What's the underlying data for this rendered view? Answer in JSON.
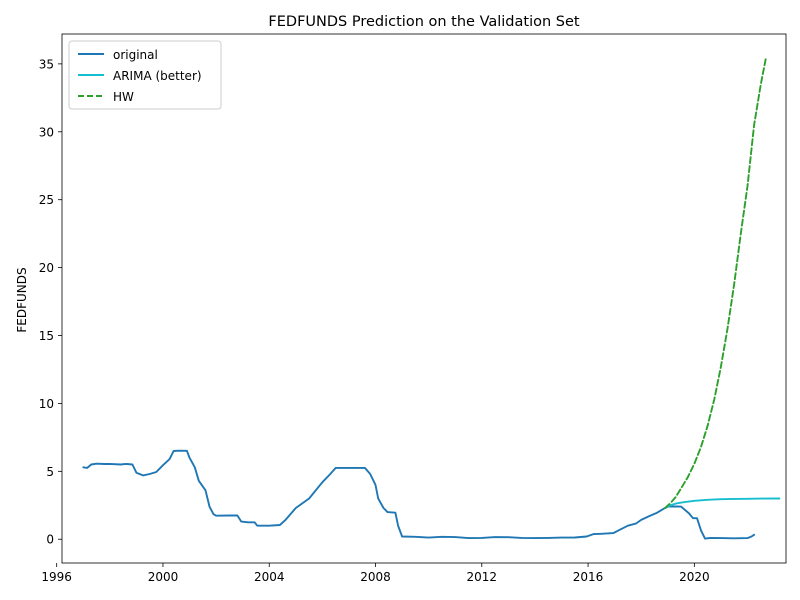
{
  "chart_data": {
    "type": "line",
    "title": "FEDFUNDS Prediction on the Validation Set",
    "xlabel": "",
    "ylabel": "FEDFUNDS",
    "xlim": [
      1996.2,
      2023.45
    ],
    "ylim": [
      -1.75,
      37.2
    ],
    "x_ticks": [
      1996,
      2000,
      2004,
      2008,
      2012,
      2016,
      2020
    ],
    "y_ticks": [
      0,
      5,
      10,
      15,
      20,
      25,
      30,
      35
    ],
    "grid": false,
    "legend_position": "upper-left",
    "series": [
      {
        "name": "original",
        "color": "#1f77b4",
        "style": "solid",
        "points": [
          [
            1997.0,
            5.3
          ],
          [
            1997.15,
            5.25
          ],
          [
            1997.3,
            5.5
          ],
          [
            1997.5,
            5.56
          ],
          [
            1997.8,
            5.54
          ],
          [
            1998.0,
            5.55
          ],
          [
            1998.4,
            5.5
          ],
          [
            1998.6,
            5.55
          ],
          [
            1998.85,
            5.5
          ],
          [
            1999.0,
            4.9
          ],
          [
            1999.25,
            4.7
          ],
          [
            1999.5,
            4.8
          ],
          [
            1999.75,
            4.95
          ],
          [
            2000.0,
            5.45
          ],
          [
            2000.25,
            5.9
          ],
          [
            2000.4,
            6.5
          ],
          [
            2000.6,
            6.52
          ],
          [
            2000.9,
            6.51
          ],
          [
            2001.0,
            6.0
          ],
          [
            2001.2,
            5.3
          ],
          [
            2001.35,
            4.3
          ],
          [
            2001.6,
            3.6
          ],
          [
            2001.75,
            2.4
          ],
          [
            2001.9,
            1.85
          ],
          [
            2002.0,
            1.73
          ],
          [
            2002.5,
            1.75
          ],
          [
            2002.8,
            1.75
          ],
          [
            2002.95,
            1.3
          ],
          [
            2003.2,
            1.25
          ],
          [
            2003.45,
            1.25
          ],
          [
            2003.55,
            1.0
          ],
          [
            2004.0,
            1.0
          ],
          [
            2004.4,
            1.05
          ],
          [
            2004.6,
            1.4
          ],
          [
            2005.0,
            2.3
          ],
          [
            2005.5,
            3.0
          ],
          [
            2006.0,
            4.2
          ],
          [
            2006.3,
            4.8
          ],
          [
            2006.5,
            5.25
          ],
          [
            2007.0,
            5.25
          ],
          [
            2007.6,
            5.25
          ],
          [
            2007.8,
            4.8
          ],
          [
            2008.0,
            4.0
          ],
          [
            2008.1,
            3.0
          ],
          [
            2008.3,
            2.3
          ],
          [
            2008.45,
            2.0
          ],
          [
            2008.75,
            1.95
          ],
          [
            2008.85,
            1.0
          ],
          [
            2009.0,
            0.2
          ],
          [
            2009.5,
            0.18
          ],
          [
            2010.0,
            0.12
          ],
          [
            2010.5,
            0.18
          ],
          [
            2011.0,
            0.16
          ],
          [
            2011.5,
            0.08
          ],
          [
            2012.0,
            0.1
          ],
          [
            2012.5,
            0.16
          ],
          [
            2013.0,
            0.15
          ],
          [
            2013.5,
            0.1
          ],
          [
            2014.0,
            0.08
          ],
          [
            2014.5,
            0.1
          ],
          [
            2015.0,
            0.12
          ],
          [
            2015.5,
            0.13
          ],
          [
            2015.95,
            0.2
          ],
          [
            2016.2,
            0.38
          ],
          [
            2016.5,
            0.4
          ],
          [
            2016.95,
            0.45
          ],
          [
            2017.2,
            0.7
          ],
          [
            2017.5,
            1.0
          ],
          [
            2017.8,
            1.15
          ],
          [
            2018.0,
            1.42
          ],
          [
            2018.3,
            1.7
          ],
          [
            2018.6,
            1.95
          ],
          [
            2018.85,
            2.25
          ],
          [
            2019.0,
            2.4
          ],
          [
            2019.3,
            2.41
          ],
          [
            2019.5,
            2.4
          ],
          [
            2019.8,
            1.9
          ],
          [
            2019.95,
            1.55
          ],
          [
            2020.1,
            1.55
          ],
          [
            2020.25,
            0.65
          ],
          [
            2020.4,
            0.05
          ],
          [
            2020.6,
            0.09
          ],
          [
            2021.0,
            0.08
          ],
          [
            2021.5,
            0.07
          ],
          [
            2022.0,
            0.08
          ],
          [
            2022.15,
            0.2
          ],
          [
            2022.25,
            0.33
          ]
        ]
      },
      {
        "name": "ARIMA (better)",
        "color": "#17becf",
        "style": "solid",
        "points": [
          [
            2018.9,
            2.3
          ],
          [
            2019.1,
            2.5
          ],
          [
            2019.3,
            2.62
          ],
          [
            2019.6,
            2.73
          ],
          [
            2020.0,
            2.83
          ],
          [
            2020.5,
            2.9
          ],
          [
            2021.0,
            2.95
          ],
          [
            2021.5,
            2.97
          ],
          [
            2022.0,
            2.98
          ],
          [
            2022.5,
            2.99
          ],
          [
            2023.2,
            3.0
          ]
        ]
      },
      {
        "name": "HW",
        "color": "#2ca02c",
        "style": "dashed",
        "points": [
          [
            2018.9,
            2.3
          ],
          [
            2019.1,
            2.65
          ],
          [
            2019.3,
            3.1
          ],
          [
            2019.5,
            3.75
          ],
          [
            2019.75,
            4.55
          ],
          [
            2020.0,
            5.55
          ],
          [
            2020.25,
            6.8
          ],
          [
            2020.5,
            8.35
          ],
          [
            2020.75,
            10.3
          ],
          [
            2021.0,
            12.7
          ],
          [
            2021.25,
            15.5
          ],
          [
            2021.5,
            18.8
          ],
          [
            2021.75,
            22.5
          ],
          [
            2022.0,
            26.0
          ],
          [
            2022.25,
            30.5
          ],
          [
            2022.5,
            33.5
          ],
          [
            2022.7,
            35.5
          ]
        ]
      }
    ]
  }
}
